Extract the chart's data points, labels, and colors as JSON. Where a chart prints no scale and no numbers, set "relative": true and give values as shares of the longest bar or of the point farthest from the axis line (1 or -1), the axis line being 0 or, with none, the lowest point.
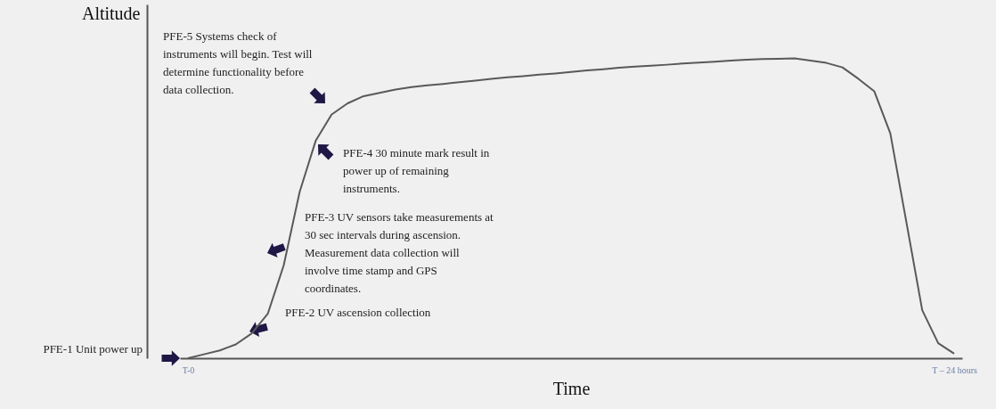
{
  "chart_data": {
    "type": "line",
    "relative": true,
    "xlabel": "Time",
    "ylabel": "Altitude",
    "marker": "none",
    "line_style": "solid",
    "categories": [
      "T-0",
      null,
      null,
      null,
      null,
      null,
      null,
      null,
      null,
      null,
      null,
      null,
      null,
      null,
      null,
      null,
      null,
      null,
      null,
      null,
      null,
      null,
      null,
      null,
      null,
      null,
      null,
      null,
      null,
      null,
      null,
      null,
      null,
      null,
      null,
      null,
      null,
      null,
      null,
      null,
      null,
      null,
      null,
      null,
      null,
      null,
      null,
      null,
      "T – 24 hours"
    ],
    "series": [
      {
        "color": "#595959",
        "values": [
          0,
          0.013,
          0.026,
          0.046,
          0.083,
          0.148,
          0.31,
          0.555,
          0.725,
          0.813,
          0.85,
          0.874,
          0.885,
          0.896,
          0.904,
          0.91,
          0.915,
          0.921,
          0.926,
          0.932,
          0.937,
          0.941,
          0.946,
          0.95,
          0.955,
          0.96,
          0.964,
          0.969,
          0.973,
          0.976,
          0.979,
          0.983,
          0.986,
          0.989,
          0.993,
          0.996,
          0.998,
          0.999,
          1,
          0.993,
          0.985,
          0.97,
          0.932,
          0.89,
          0.75,
          0.456,
          0.16,
          0.05,
          0.015
        ]
      }
    ],
    "annotations": [
      "PFE-1 Unit power up",
      "PFE-2 UV ascension collection",
      "PFE-3 UV sensors take measurements at 30 sec intervals during ascension. Measurement data collection will involve time stamp and GPS coordinates.",
      "PFE-4 30 minute mark result in power up of remaining instruments.",
      "PFE-5 Systems check of instruments will begin. Test will determine functionality before data collection."
    ]
  }
}
